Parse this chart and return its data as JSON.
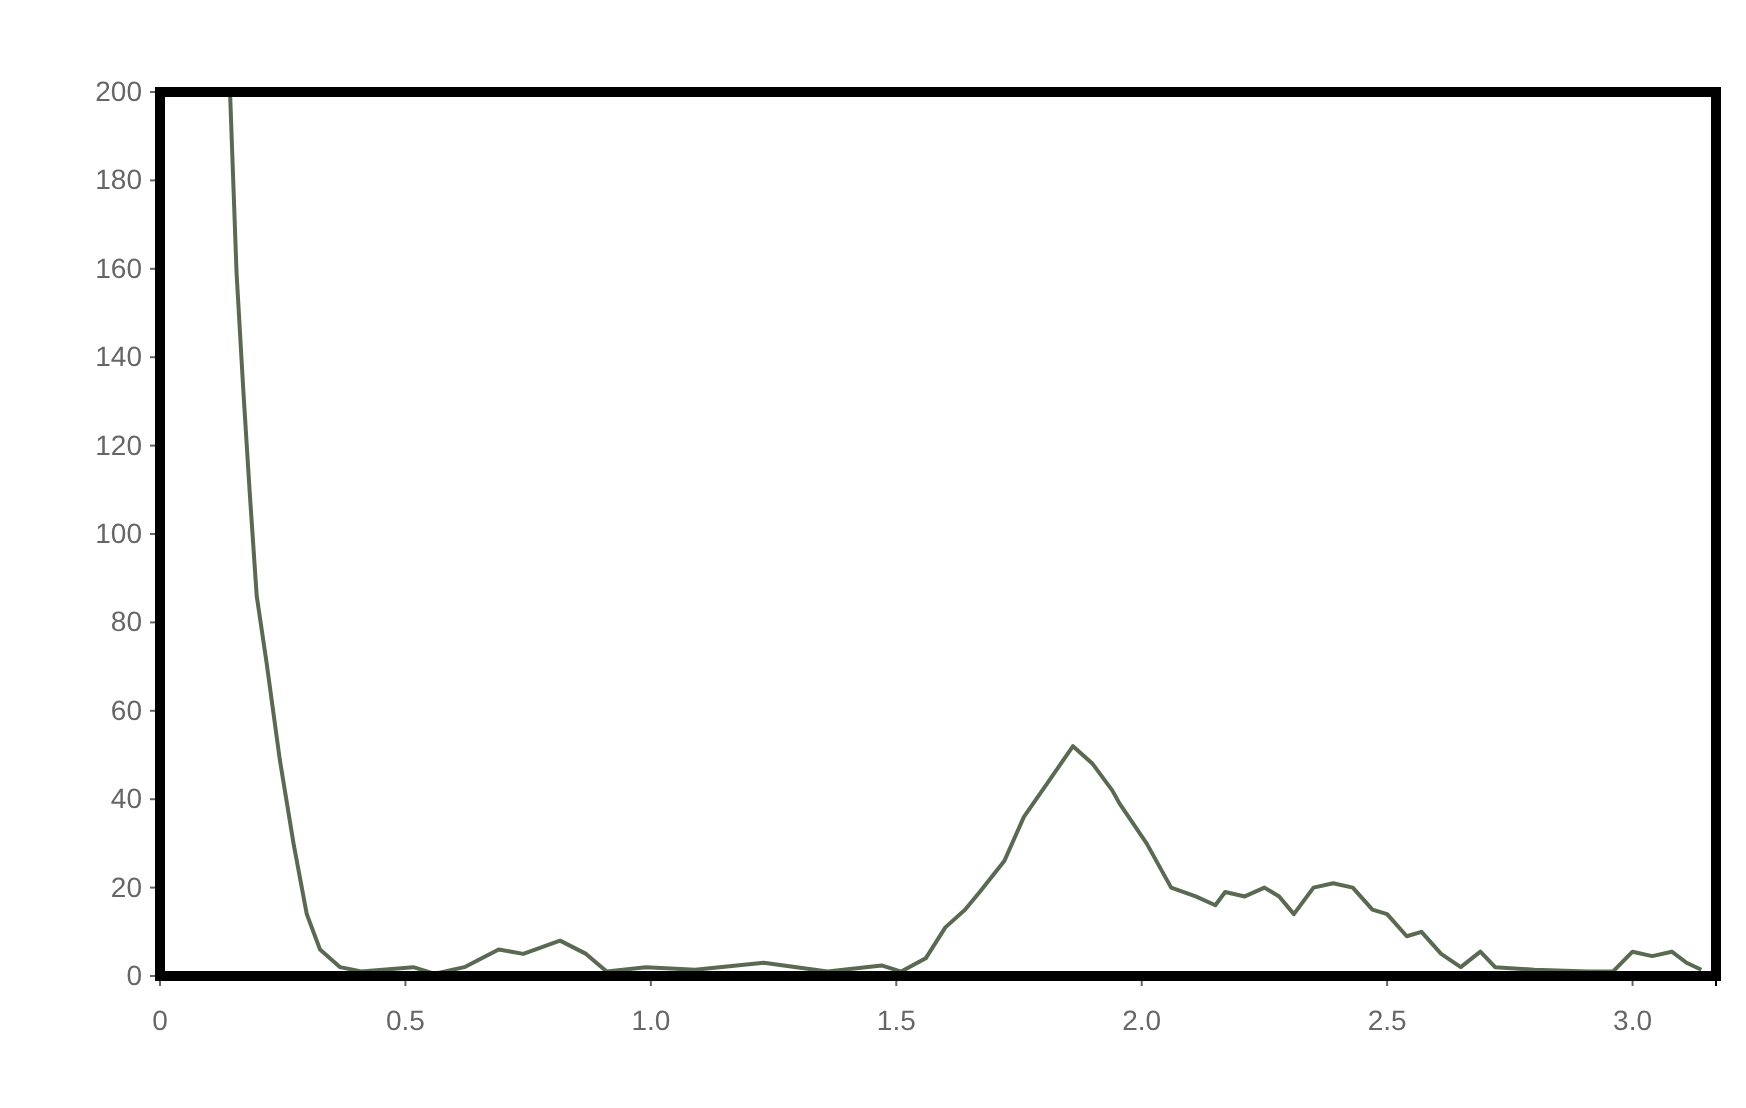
{
  "chart_data": {
    "type": "line",
    "xlim": [
      0,
      3.17
    ],
    "ylim": [
      0,
      200
    ],
    "xticks": [
      0,
      0.5,
      {
        "value": 1,
        "label": "1.0"
      },
      1.5,
      {
        "value": 2,
        "label": "2.0"
      },
      2.5,
      {
        "value": 3,
        "label": "3.0"
      }
    ],
    "yticks": [
      0,
      20,
      40,
      60,
      80,
      100,
      120,
      140,
      160,
      180,
      200
    ],
    "marker": "none",
    "line_style": "solid",
    "series": [
      {
        "color": "#5a6a52",
        "x": [
          0.143,
          0.156,
          0.17,
          0.183,
          0.197,
          0.217,
          0.244,
          0.272,
          0.299,
          0.326,
          0.367,
          0.41,
          0.516,
          0.56,
          0.62,
          0.69,
          0.74,
          0.815,
          0.868,
          0.91,
          0.99,
          1.09,
          1.23,
          1.36,
          1.47,
          1.51,
          1.56,
          1.6,
          1.64,
          1.67,
          1.72,
          1.76,
          1.81,
          1.86,
          1.9,
          1.94,
          1.955,
          2.01,
          2.06,
          2.11,
          2.15,
          2.17,
          2.21,
          2.25,
          2.28,
          2.31,
          2.35,
          2.39,
          2.43,
          2.47,
          2.5,
          2.54,
          2.57,
          2.61,
          2.65,
          2.69,
          2.72,
          2.8,
          2.91,
          2.96,
          3.0,
          3.04,
          3.08,
          3.11,
          3.14
        ],
        "values": [
          199,
          159,
          132,
          109,
          86,
          71,
          49,
          30,
          14,
          6,
          2,
          1,
          2,
          0.5,
          2,
          6,
          5,
          8,
          5,
          1,
          2,
          1.4,
          3,
          1,
          2.4,
          1,
          4,
          11,
          15,
          19,
          26,
          36,
          44,
          52,
          48,
          42,
          39,
          30,
          20,
          18,
          16,
          19,
          18,
          20,
          18,
          14,
          20,
          21,
          20,
          15,
          14,
          9,
          10,
          5,
          2,
          5.5,
          2,
          1.4,
          1,
          1,
          5.5,
          4.5,
          5.5,
          3,
          1.4
        ]
      }
    ]
  }
}
